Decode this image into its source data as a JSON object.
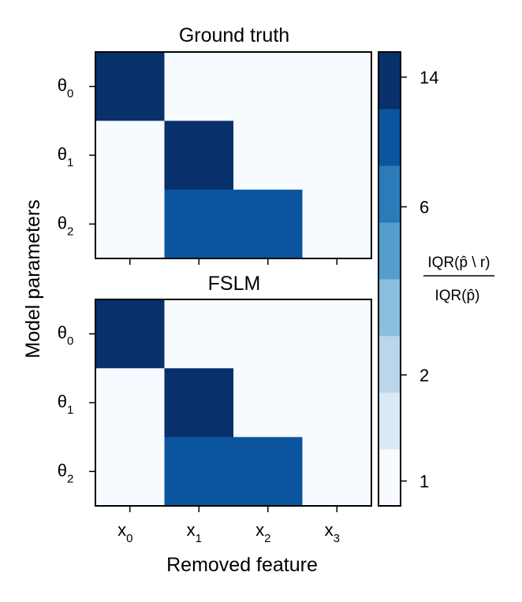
{
  "chart_data": [
    {
      "type": "heatmap",
      "title": "Ground truth",
      "x_categories": [
        {
          "base": "x",
          "sub": "0"
        },
        {
          "base": "x",
          "sub": "1"
        },
        {
          "base": "x",
          "sub": "2"
        },
        {
          "base": "x",
          "sub": "3"
        }
      ],
      "y_categories": [
        {
          "base": "θ",
          "sub": "0"
        },
        {
          "base": "θ",
          "sub": "1"
        },
        {
          "base": "θ",
          "sub": "2"
        }
      ],
      "values": [
        [
          14,
          1,
          1,
          1
        ],
        [
          1,
          14,
          1,
          1
        ],
        [
          1,
          8,
          8,
          1
        ]
      ]
    },
    {
      "type": "heatmap",
      "title": "FSLM",
      "x_categories": [
        {
          "base": "x",
          "sub": "0"
        },
        {
          "base": "x",
          "sub": "1"
        },
        {
          "base": "x",
          "sub": "2"
        },
        {
          "base": "x",
          "sub": "3"
        }
      ],
      "y_categories": [
        {
          "base": "θ",
          "sub": "0"
        },
        {
          "base": "θ",
          "sub": "1"
        },
        {
          "base": "θ",
          "sub": "2"
        }
      ],
      "values": [
        [
          14,
          1,
          1,
          1
        ],
        [
          1,
          14,
          1,
          1
        ],
        [
          1,
          8,
          8,
          1
        ]
      ]
    }
  ],
  "shared_axes": {
    "ylabel": "Model parameters",
    "xlabel": "Removed feature"
  },
  "colorbar": {
    "scale": "log",
    "range": [
      0.85,
      16.5
    ],
    "levels": 8,
    "tick_values": [
      1,
      2,
      6,
      14
    ],
    "tick_labels": [
      "1",
      "2",
      "6",
      "14"
    ],
    "label_numerator": "IQR(p̂ \\ r)",
    "label_denominator": "IQR(p̂)",
    "colors": [
      "#f7fbff",
      "#dbe9f6",
      "#bad6eb",
      "#89bedc",
      "#539ecd",
      "#2b7bba",
      "#0b559f",
      "#08306b"
    ]
  }
}
